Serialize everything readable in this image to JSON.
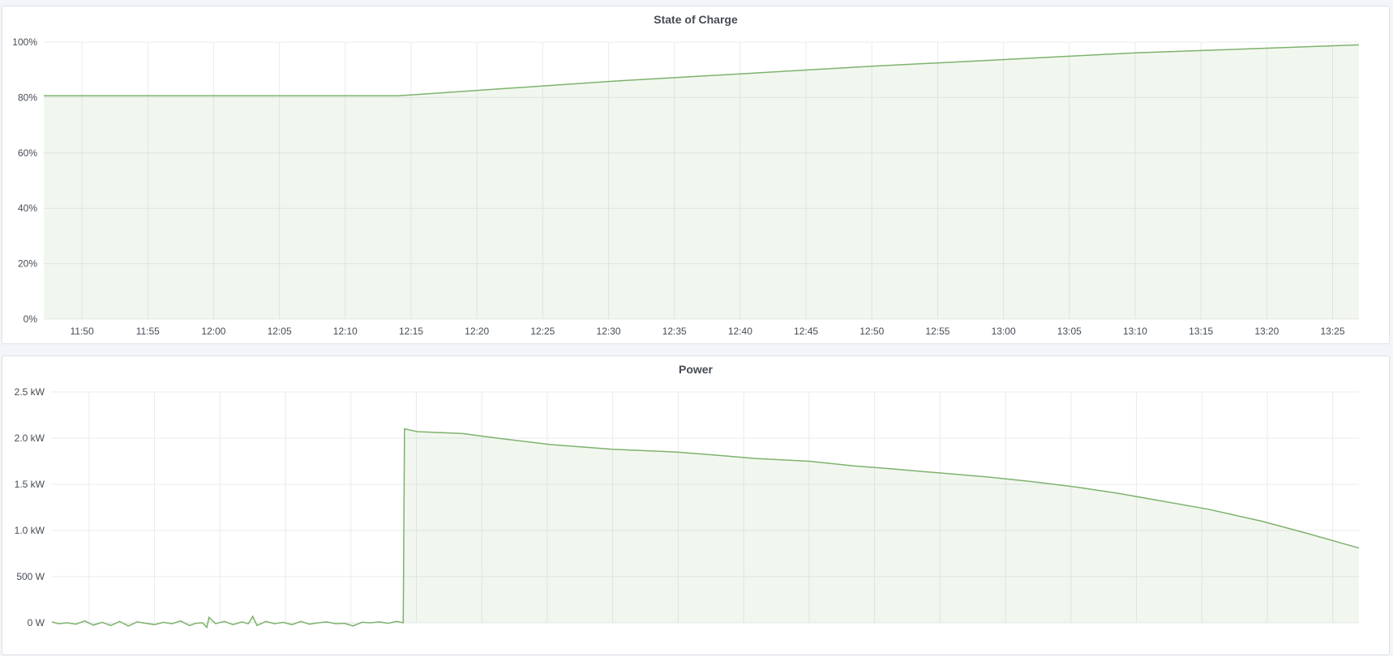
{
  "colors": {
    "series": "#7eb26d",
    "fill": "rgba(126,178,109,0.11)",
    "grid": "#e9ebee",
    "background": "#f4f5f8"
  },
  "chart_data": [
    {
      "type": "area",
      "title": "State of Charge",
      "x_range": [
        "11:47:06",
        "13:27:00"
      ],
      "ylim": [
        0,
        100
      ],
      "y_unit": "%",
      "y_ticks": [
        "0%",
        "20%",
        "40%",
        "60%",
        "80%",
        "100%"
      ],
      "y_tick_values": [
        0,
        20,
        40,
        60,
        80,
        100
      ],
      "x_ticks": [
        "11:50",
        "11:55",
        "12:00",
        "12:05",
        "12:10",
        "12:15",
        "12:20",
        "12:25",
        "12:30",
        "12:35",
        "12:40",
        "12:45",
        "12:50",
        "12:55",
        "13:00",
        "13:05",
        "13:10",
        "13:15",
        "13:20",
        "13:25"
      ],
      "grid": true,
      "series": [
        {
          "points": [
            [
              "11:47:06",
              80.6
            ],
            [
              "12:14:00",
              80.6
            ],
            [
              "12:30:00",
              85.8
            ],
            [
              "12:50:00",
              91.3
            ],
            [
              "13:10:00",
              96.1
            ],
            [
              "13:27:00",
              99.0
            ]
          ]
        }
      ]
    },
    {
      "type": "area",
      "title": "Power",
      "x_range": [
        "11:47:06",
        "13:27:00"
      ],
      "ylim": [
        0,
        2500
      ],
      "y_unit": "W",
      "y_ticks": [
        "0 W",
        "500 W",
        "1.0 kW",
        "1.5 kW",
        "2.0 kW",
        "2.5 kW"
      ],
      "y_tick_values": [
        0,
        500,
        1000,
        1500,
        2000,
        2500
      ],
      "x_ticks": [
        "11:50",
        "11:55",
        "12:00",
        "12:05",
        "12:10",
        "12:15",
        "12:20",
        "12:25",
        "12:30",
        "12:35",
        "12:40",
        "12:45",
        "12:50",
        "12:55",
        "13:00",
        "13:05",
        "13:10",
        "13:15",
        "13:20",
        "13:25"
      ],
      "grid": true,
      "series": [
        {
          "points": [
            [
              "11:47:10",
              10
            ],
            [
              "11:47:40",
              -10
            ],
            [
              "11:48:20",
              0
            ],
            [
              "11:49:00",
              -15
            ],
            [
              "11:49:40",
              20
            ],
            [
              "11:50:20",
              -25
            ],
            [
              "11:51:00",
              5
            ],
            [
              "11:51:40",
              -30
            ],
            [
              "11:52:20",
              15
            ],
            [
              "11:53:00",
              -35
            ],
            [
              "11:53:40",
              10
            ],
            [
              "11:54:20",
              -5
            ],
            [
              "11:55:00",
              -20
            ],
            [
              "11:55:40",
              5
            ],
            [
              "11:56:20",
              -10
            ],
            [
              "11:57:00",
              20
            ],
            [
              "11:57:40",
              -30
            ],
            [
              "11:58:10",
              -5
            ],
            [
              "11:58:40",
              0
            ],
            [
              "11:59:00",
              -50
            ],
            [
              "11:59:10",
              60
            ],
            [
              "11:59:40",
              -10
            ],
            [
              "12:00:20",
              15
            ],
            [
              "12:01:00",
              -20
            ],
            [
              "12:01:40",
              10
            ],
            [
              "12:02:10",
              -10
            ],
            [
              "12:02:30",
              70
            ],
            [
              "12:02:50",
              -30
            ],
            [
              "12:03:30",
              15
            ],
            [
              "12:04:10",
              -10
            ],
            [
              "12:04:50",
              5
            ],
            [
              "12:05:30",
              -20
            ],
            [
              "12:06:10",
              15
            ],
            [
              "12:06:50",
              -15
            ],
            [
              "12:07:30",
              0
            ],
            [
              "12:08:10",
              10
            ],
            [
              "12:08:50",
              -10
            ],
            [
              "12:09:30",
              -5
            ],
            [
              "12:10:10",
              -35
            ],
            [
              "12:10:50",
              5
            ],
            [
              "12:11:30",
              0
            ],
            [
              "12:12:10",
              10
            ],
            [
              "12:12:50",
              -5
            ],
            [
              "12:13:30",
              15
            ],
            [
              "12:14:00",
              0
            ],
            [
              "12:14:06",
              2100
            ],
            [
              "12:15:06",
              2070
            ],
            [
              "12:18:30",
              2050
            ],
            [
              "12:21:12",
              2000
            ],
            [
              "12:25:18",
              1930
            ],
            [
              "12:30:00",
              1880
            ],
            [
              "12:34:48",
              1850
            ],
            [
              "12:37:30",
              1820
            ],
            [
              "12:40:54",
              1780
            ],
            [
              "12:45:00",
              1750
            ],
            [
              "12:48:24",
              1700
            ],
            [
              "12:51:06",
              1670
            ],
            [
              "12:55:12",
              1620
            ],
            [
              "12:58:36",
              1580
            ],
            [
              "13:02:00",
              1530
            ],
            [
              "13:05:24",
              1470
            ],
            [
              "13:08:42",
              1400
            ],
            [
              "13:11:30",
              1330
            ],
            [
              "13:15:30",
              1230
            ],
            [
              "13:19:36",
              1100
            ],
            [
              "13:23:00",
              970
            ],
            [
              "13:27:00",
              810
            ]
          ]
        }
      ]
    }
  ]
}
